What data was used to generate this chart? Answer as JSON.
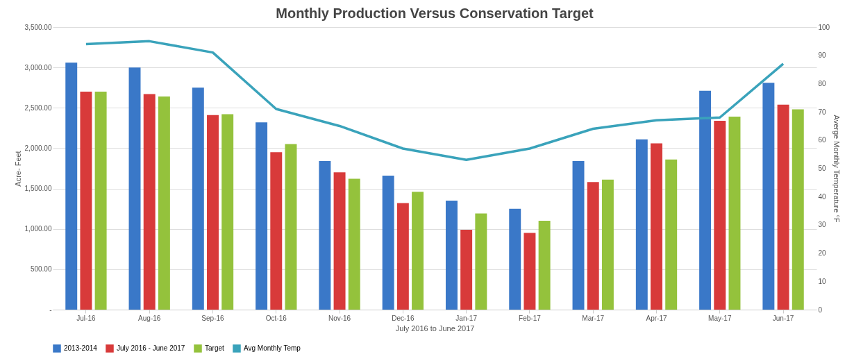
{
  "chart_data": {
    "type": "bar",
    "title": "Monthly Production Versus Conservation Target",
    "xlabel": "July 2016 to June 2017",
    "ylabel": "Acre- Feet",
    "y2label": "Averge Monthly Temperature °F",
    "categories": [
      "Jul-16",
      "Aug-16",
      "Sep-16",
      "Oct-16",
      "Nov-16",
      "Dec-16",
      "Jan-17",
      "Feb-17",
      "Mar-17",
      "Apr-17",
      "May-17",
      "Jun-17"
    ],
    "series": [
      {
        "name": "2013-2014",
        "color": "#3a78c8",
        "values": [
          3060,
          3000,
          2750,
          2320,
          1840,
          1660,
          1350,
          1250,
          1840,
          2110,
          2710,
          2810
        ]
      },
      {
        "name": "July 2016 - June 2017",
        "color": "#d83a3a",
        "values": [
          2700,
          2670,
          2410,
          1950,
          1700,
          1320,
          990,
          950,
          1580,
          2060,
          2340,
          2540
        ]
      },
      {
        "name": "Target",
        "color": "#94c23c",
        "values": [
          2700,
          2640,
          2420,
          2050,
          1620,
          1460,
          1190,
          1100,
          1610,
          1860,
          2390,
          2480
        ]
      },
      {
        "name": "Avg Monthly Temp",
        "type": "line",
        "axis": "y2",
        "color": "#3aa3bb",
        "values": [
          94,
          95,
          91,
          71,
          65,
          57,
          53,
          57,
          64,
          67,
          68,
          87
        ]
      }
    ],
    "ylim": [
      0,
      3500
    ],
    "yticks": [
      {
        "value": 0,
        "label": "-"
      },
      {
        "value": 500,
        "label": "500.00"
      },
      {
        "value": 1000,
        "label": "1,000.00"
      },
      {
        "value": 1500,
        "label": "1,500.00"
      },
      {
        "value": 2000,
        "label": "2,000.00"
      },
      {
        "value": 2500,
        "label": "2,500.00"
      },
      {
        "value": 3000,
        "label": "3,000.00"
      },
      {
        "value": 3500,
        "label": "3,500.00"
      }
    ],
    "y2lim": [
      0,
      100
    ],
    "y2ticks": [
      0,
      10,
      20,
      30,
      40,
      50,
      60,
      70,
      80,
      90,
      100
    ],
    "grid": "y",
    "legend": "bottom",
    "line_style": "solid"
  }
}
